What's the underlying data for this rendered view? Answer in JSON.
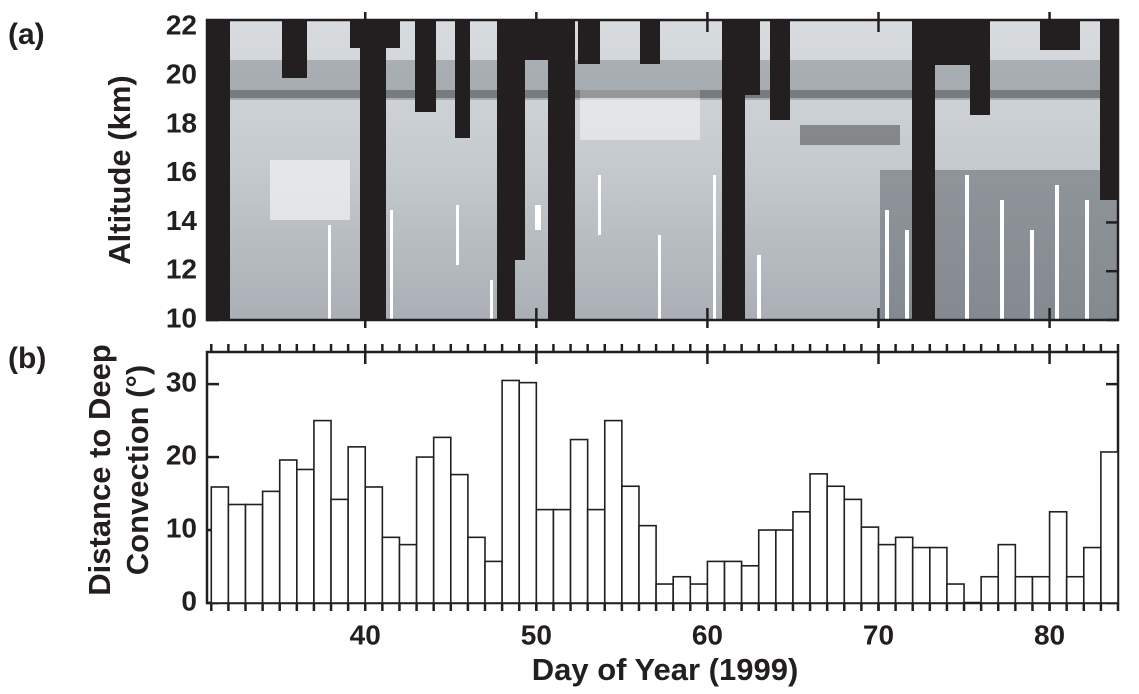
{
  "chart_data": [
    {
      "type": "image",
      "panel_label": "(a)",
      "ylabel": "Altitude (km)",
      "xlim": [
        30.75,
        84
      ],
      "xticks": [
        40,
        50,
        60,
        70,
        80
      ],
      "ylim": [
        10,
        22.3
      ],
      "yticks": [
        10,
        12,
        14,
        16,
        18,
        20,
        22
      ]
    },
    {
      "type": "histogram",
      "panel_label": "(b)",
      "ylabel": [
        "Distance to Deep",
        "Convection (°)"
      ],
      "xlabel": "Day of Year (1999)",
      "bins": [
        31,
        32,
        33,
        34,
        35,
        36,
        37,
        38,
        39,
        40,
        41,
        42,
        43,
        44,
        45,
        46,
        47,
        48,
        49,
        50,
        51,
        52,
        53,
        54,
        55,
        56,
        57,
        58,
        59,
        60,
        61,
        62,
        63,
        64,
        65,
        66,
        67,
        68,
        69,
        70,
        71,
        72,
        73,
        74,
        75,
        76,
        77,
        78,
        79,
        80,
        81,
        82,
        83,
        84
      ],
      "values": [
        15.9,
        13.5,
        13.5,
        15.3,
        19.6,
        18.3,
        25,
        14.2,
        21.4,
        15.9,
        9,
        8,
        20,
        22.7,
        17.6,
        9,
        5.7,
        30.5,
        30.2,
        12.8,
        12.8,
        22.4,
        12.8,
        25,
        16,
        10.6,
        2.6,
        3.6,
        2.6,
        5.7,
        5.7,
        5.1,
        10,
        10,
        12.5,
        17.7,
        16,
        14.2,
        10.4,
        8,
        9,
        7.6,
        7.6,
        2.6,
        0,
        3.6,
        8,
        3.6,
        3.6,
        12.5,
        3.6,
        7.6,
        20.7
      ],
      "color": "#ffffff",
      "xlim": [
        30.75,
        84
      ],
      "xticks": [
        40,
        50,
        60,
        70,
        80
      ],
      "ylim": [
        0,
        34.4
      ],
      "yticks": [
        0,
        10,
        20,
        30
      ]
    }
  ]
}
